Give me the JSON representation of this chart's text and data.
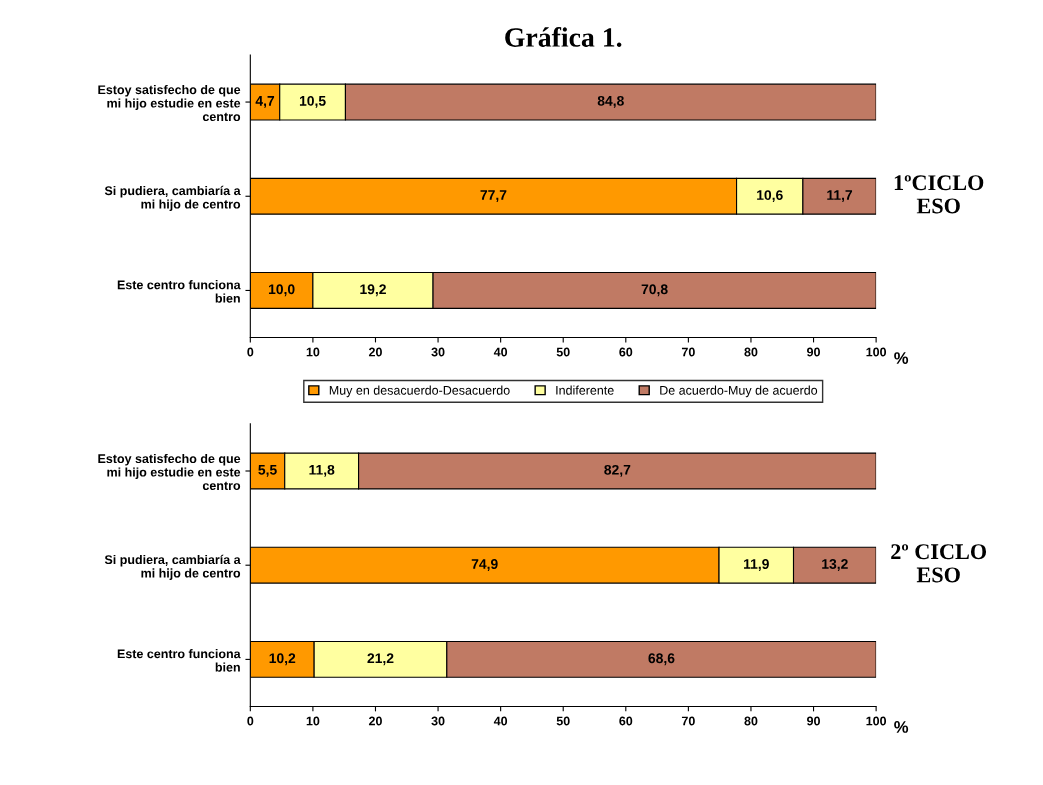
{
  "chart_data": [
    {
      "type": "bar",
      "orientation": "horizontal",
      "stacked": true,
      "title": "Gráfica 1.",
      "xlabel": "%",
      "annotations": [
        "1ºCICLO\nESO"
      ],
      "categories": [
        "Estoy satisfecho de que\nmi hijo estudie en este\ncentro",
        "Si pudiera, cambiaría a\nmi hijo de centro",
        "Este centro funciona\nbien"
      ],
      "series": [
        {
          "name": "Muy en desacuerdo-Desacuerdo",
          "color": "#ff9900",
          "values": [
            4.7,
            77.7,
            10.0
          ],
          "value_labels": [
            "4,7",
            "77,7",
            "10,0"
          ]
        },
        {
          "name": "Indiferente",
          "color": "#ffffa0",
          "values": [
            10.5,
            10.6,
            19.2
          ],
          "value_labels": [
            "10,5",
            "10,6",
            "19,2"
          ]
        },
        {
          "name": "De acuerdo-Muy de acuerdo",
          "color": "#c07a64",
          "values": [
            84.8,
            11.7,
            70.8
          ],
          "value_labels": [
            "84,8",
            "11,7",
            "70,8"
          ]
        }
      ],
      "xlim": [
        0,
        100
      ],
      "xticks": [
        0,
        10,
        20,
        30,
        40,
        50,
        60,
        70,
        80,
        90,
        100
      ],
      "grid": false,
      "legend": "bottom"
    },
    {
      "type": "bar",
      "orientation": "horizontal",
      "stacked": true,
      "xlabel": "%",
      "annotations": [
        "2º CICLO\nESO"
      ],
      "categories": [
        "Estoy satisfecho de que\nmi hijo estudie en este\ncentro",
        "Si pudiera, cambiaría a\nmi hijo de centro",
        "Este centro funciona\nbien"
      ],
      "series": [
        {
          "color": "#ff9900",
          "values": [
            5.5,
            74.9,
            10.2
          ],
          "value_labels": [
            "5,5",
            "74,9",
            "10,2"
          ]
        },
        {
          "color": "#ffffa0",
          "values": [
            11.8,
            11.9,
            21.2
          ],
          "value_labels": [
            "11,8",
            "11,9",
            "21,2"
          ]
        },
        {
          "color": "#c07a64",
          "values": [
            82.7,
            13.2,
            68.6
          ],
          "value_labels": [
            "82,7",
            "13,2",
            "68,6"
          ]
        }
      ],
      "xlim": [
        0,
        100
      ],
      "xticks": [
        0,
        10,
        20,
        30,
        40,
        50,
        60,
        70,
        80,
        90,
        100
      ],
      "grid": false
    }
  ]
}
